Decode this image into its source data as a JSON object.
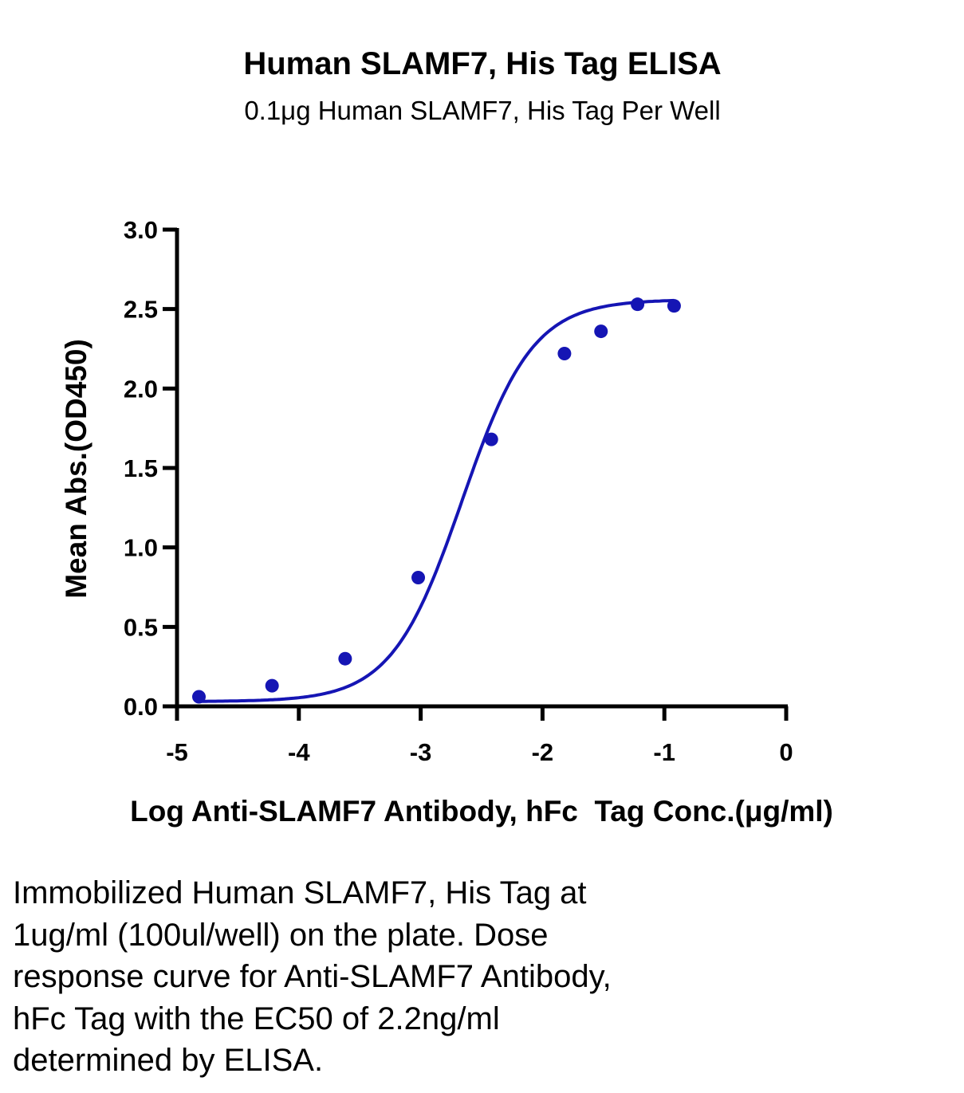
{
  "chart_data": {
    "type": "scatter",
    "title": "Human SLAMF7, His Tag ELISA",
    "subtitle": "0.1μg Human SLAMF7, His Tag Per Well",
    "xlabel": "Log Anti-SLAMF7 Antibody, hFc  Tag Conc.(μg/ml)",
    "ylabel": "Mean Abs.(OD450)",
    "xlim": [
      -5,
      0
    ],
    "ylim": [
      0,
      3.0
    ],
    "x_ticks": [
      -5,
      -4,
      -3,
      -2,
      -1,
      0
    ],
    "x_tick_labels": [
      "-5",
      "-4",
      "-3",
      "-2",
      "-1",
      "0"
    ],
    "y_ticks": [
      0,
      0.5,
      1.0,
      1.5,
      2.0,
      2.5,
      3.0
    ],
    "y_tick_labels": [
      "0.0",
      "0.5",
      "1.0",
      "1.5",
      "2.0",
      "2.5",
      "3.0"
    ],
    "grid": false,
    "series": [
      {
        "x": [
          -4.82,
          -4.22,
          -3.62,
          -3.02,
          -2.42,
          -1.82,
          -1.52,
          -1.22,
          -0.92
        ],
        "y": [
          0.06,
          0.13,
          0.3,
          0.81,
          1.68,
          2.22,
          2.36,
          2.53,
          2.52
        ],
        "fit": "4PL",
        "color": "#1515b4"
      }
    ]
  },
  "caption_lines": [
    "Immobilized Human SLAMF7, His Tag at",
    "1ug/ml (100ul/well) on the plate. Dose",
    "response curve for Anti-SLAMF7 Antibody,",
    "hFc Tag with the EC50 of 2.2ng/ml",
    "determined by ELISA."
  ]
}
